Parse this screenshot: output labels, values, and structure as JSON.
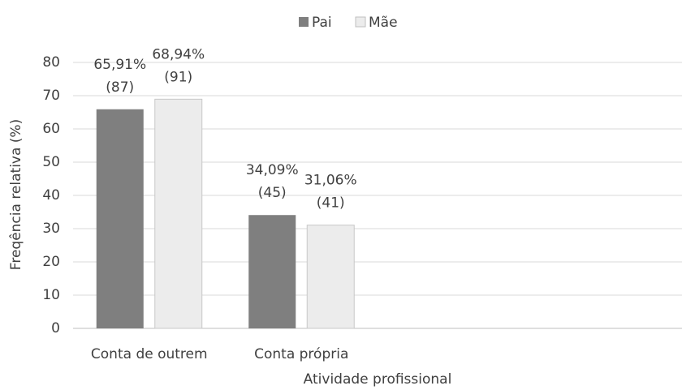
{
  "chart_data": {
    "type": "bar",
    "x_label": "Atividade profissional",
    "y_label": "Freqência relativa (%)",
    "categories": [
      "Conta de outrem",
      "Conta própria",
      null,
      null
    ],
    "series": [
      {
        "name": "Pai",
        "color": "#7f7f7f",
        "values": [
          65.91,
          34.09,
          null,
          null
        ],
        "value_labels": [
          [
            "65,91%",
            "(87)"
          ],
          [
            "34,09%",
            "(45)"
          ],
          null,
          null
        ]
      },
      {
        "name": "Mãe",
        "color": "#ececec",
        "values": [
          68.94,
          31.06,
          null,
          null
        ],
        "value_labels": [
          [
            "68,94%",
            "(91)"
          ],
          [
            "31,06%",
            "(41)"
          ],
          null,
          null
        ]
      }
    ],
    "ylim": [
      0,
      80
    ],
    "yticks": [
      0,
      10,
      20,
      30,
      40,
      50,
      60,
      70,
      80
    ],
    "grid": true,
    "legend": "top"
  }
}
